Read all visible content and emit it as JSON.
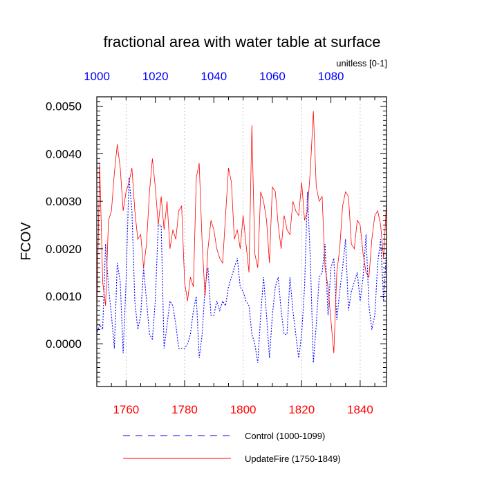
{
  "chart_data": {
    "type": "line",
    "title": "fractional area with water table at surface",
    "units_label": "unitless [0-1]",
    "ylabel": "FCOV",
    "xlabel": "",
    "ylim": [
      -0.0009,
      0.0052
    ],
    "yticks": [
      0.0,
      0.001,
      0.002,
      0.003,
      0.004,
      0.005
    ],
    "ytick_labels": [
      "0.0000",
      "0.0010",
      "0.0020",
      "0.0030",
      "0.0040",
      "0.0050"
    ],
    "bottom_axis": {
      "range": [
        1750,
        1849
      ],
      "ticks": [
        1760,
        1780,
        1800,
        1820,
        1840
      ],
      "labels": [
        "1760",
        "1780",
        "1800",
        "1820",
        "1840"
      ],
      "color": "#ff0000"
    },
    "top_axis": {
      "range": [
        1000,
        1099
      ],
      "ticks": [
        1000,
        1020,
        1040,
        1060,
        1080
      ],
      "labels": [
        "1000",
        "1020",
        "1040",
        "1060",
        "1080"
      ],
      "color": "#0000ff"
    },
    "grid": "vertical dotted at major bottom ticks",
    "legend": {
      "placement": "bottom-center"
    },
    "series": [
      {
        "name": "Control (1000-1099)",
        "axis": "top",
        "color": "#0000ff",
        "style": "dashed",
        "x_start": 1000,
        "values": [
          0.0002,
          0.0004,
          0.0003,
          0.0021,
          0.0012,
          0.0006,
          -0.0001,
          0.0017,
          0.0013,
          -0.0002,
          0.0013,
          0.0035,
          0.0028,
          0.0009,
          0.0003,
          0.0006,
          0.0016,
          0.0009,
          0.0002,
          0.0001,
          0.0009,
          0.0025,
          0.0025,
          -0.0001,
          0.0004,
          0.0009,
          0.0008,
          0.0004,
          -0.0001,
          -0.0001,
          -0.0001,
          0.0,
          0.0002,
          0.0007,
          0.001,
          -0.0003,
          0.0002,
          0.0012,
          0.0016,
          0.0006,
          0.0006,
          0.0009,
          0.0007,
          0.0009,
          0.0008,
          0.0012,
          0.0014,
          0.0016,
          0.0018,
          0.0012,
          0.0011,
          0.0009,
          0.0008,
          0.0002,
          0.0,
          -0.0004,
          0.0006,
          0.0014,
          0.0006,
          -0.0003,
          0.0006,
          0.0012,
          0.0014,
          0.0007,
          0.0002,
          0.0002,
          0.0014,
          0.0007,
          0.0002,
          -0.0003,
          0.0002,
          0.0012,
          0.0032,
          0.0017,
          -0.0004,
          0.0004,
          0.0014,
          0.0015,
          0.0021,
          0.0006,
          0.0016,
          0.0018,
          0.0005,
          0.0011,
          0.0016,
          0.0022,
          0.0007,
          0.0011,
          0.0013,
          0.0015,
          0.0009,
          0.0014,
          0.0023,
          0.0008,
          0.0003,
          0.0006,
          0.0017,
          0.0022,
          0.0009,
          0.002
        ]
      },
      {
        "name": "UpdateFire (1750-1849)",
        "axis": "bottom",
        "color": "#ff0000",
        "style": "solid",
        "x_start": 1750,
        "values": [
          0.0006,
          0.0038,
          0.0013,
          0.0008,
          0.0026,
          0.0028,
          0.0036,
          0.0042,
          0.0037,
          0.0028,
          0.0032,
          0.0034,
          0.0037,
          0.0028,
          0.0022,
          0.0023,
          0.0016,
          0.0021,
          0.0032,
          0.0039,
          0.0033,
          0.0025,
          0.0031,
          0.0024,
          0.003,
          0.002,
          0.0024,
          0.0022,
          0.0028,
          0.0029,
          0.0013,
          0.0009,
          0.0014,
          0.0012,
          0.0035,
          0.0038,
          0.0021,
          0.001,
          0.002,
          0.0026,
          0.0024,
          0.002,
          0.0018,
          0.0017,
          0.0027,
          0.0037,
          0.0034,
          0.0022,
          0.0024,
          0.002,
          0.0027,
          0.0021,
          0.0015,
          0.0046,
          0.0019,
          0.0016,
          0.0032,
          0.003,
          0.0026,
          0.0017,
          0.0033,
          0.0032,
          0.0025,
          0.002,
          0.0027,
          0.0024,
          0.0023,
          0.003,
          0.0028,
          0.0027,
          0.0034,
          0.0026,
          0.0028,
          0.0037,
          0.0049,
          0.0033,
          0.003,
          0.0031,
          0.0016,
          0.0012,
          0.0005,
          -0.0002,
          0.0015,
          0.002,
          0.0029,
          0.0032,
          0.0031,
          0.0021,
          0.002,
          0.0026,
          0.0025,
          0.0019,
          0.0015,
          0.0014,
          0.0022,
          0.0027,
          0.0028,
          0.0025,
          0.0018,
          0.003
        ]
      }
    ]
  }
}
